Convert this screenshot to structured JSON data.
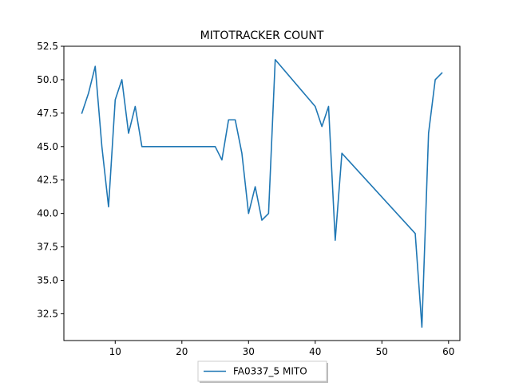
{
  "chart_data": {
    "type": "line",
    "title": "MITOTRACKER COUNT",
    "xlabel": "",
    "ylabel": "",
    "xlim": [
      2.3,
      61.7
    ],
    "ylim": [
      30.5,
      52.5
    ],
    "xticks": [
      10,
      20,
      30,
      40,
      50,
      60
    ],
    "yticks": [
      32.5,
      35.0,
      37.5,
      40.0,
      42.5,
      45.0,
      47.5,
      50.0,
      52.5
    ],
    "ytick_labels": [
      "32.5",
      "35.0",
      "37.5",
      "40.0",
      "42.5",
      "45.0",
      "47.5",
      "50.0",
      "52.5"
    ],
    "grid": false,
    "legend_position": "bottom-center",
    "series": [
      {
        "name": "FA0337_5 MITO",
        "color": "#1f77b4",
        "x": [
          5,
          6,
          7,
          8,
          9,
          10,
          11,
          12,
          13,
          14,
          25,
          26,
          27,
          28,
          29,
          30,
          31,
          32,
          33,
          34,
          40,
          41,
          42,
          43,
          44,
          55,
          56,
          57,
          58,
          59
        ],
        "y": [
          47.5,
          49.0,
          51.0,
          45.0,
          40.5,
          48.5,
          50.0,
          46.0,
          48.0,
          45.0,
          45.0,
          44.0,
          47.0,
          47.0,
          44.5,
          40.0,
          42.0,
          39.5,
          40.0,
          51.5,
          48.0,
          46.5,
          48.0,
          38.0,
          44.5,
          38.5,
          31.5,
          46.0,
          50.0,
          50.5
        ]
      }
    ]
  }
}
